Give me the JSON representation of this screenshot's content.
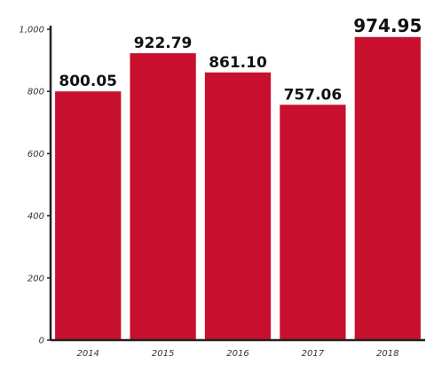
{
  "chart_data": {
    "type": "bar",
    "title": "",
    "xlabel": "",
    "ylabel": "",
    "categories": [
      "2014",
      "2015",
      "2016",
      "2017",
      "2018"
    ],
    "values": [
      800.05,
      922.79,
      861.1,
      757.06,
      974.95
    ],
    "value_labels": [
      "800.05",
      "922.79",
      "861.10",
      "757.06",
      "974.95"
    ],
    "ylim": [
      0,
      1000
    ],
    "yticks": [
      0,
      200,
      400,
      600,
      800,
      1000
    ],
    "ytick_labels": [
      "0",
      "200",
      "400",
      "600",
      "800",
      "1,000"
    ],
    "grid": false,
    "legend": "none",
    "bar_color": "#c8102e",
    "axis_color": "#222222"
  }
}
